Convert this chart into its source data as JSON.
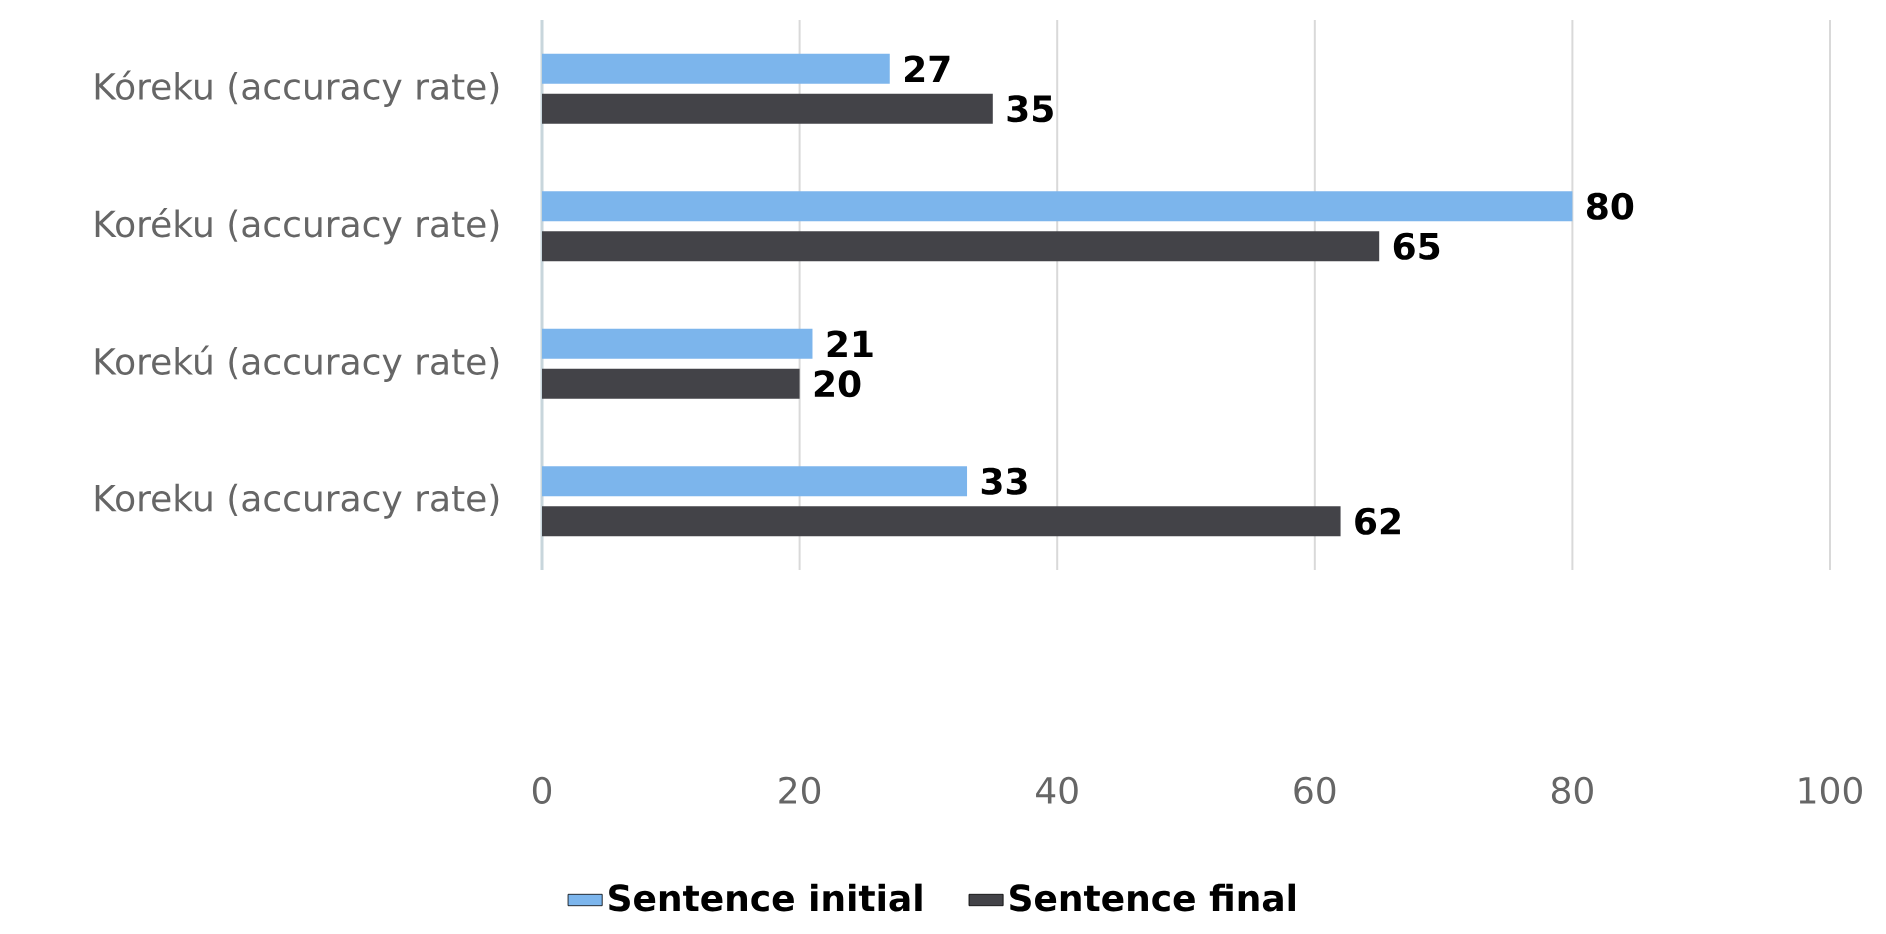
{
  "chart_data": {
    "type": "bar",
    "orientation": "horizontal",
    "categories": [
      "Kóreku (accuracy rate)",
      "Koréku (accuracy rate)",
      "Korekú (accuracy rate)",
      "Koreku (accuracy rate)"
    ],
    "series": [
      {
        "name": "Sentence initial",
        "color": "#7cb5ec",
        "values": [
          27,
          80,
          21,
          33
        ]
      },
      {
        "name": "Sentence final",
        "color": "#434348",
        "values": [
          35,
          65,
          20,
          62
        ]
      }
    ],
    "xlim": [
      0,
      100
    ],
    "xticks": [
      0,
      20,
      40,
      60,
      80,
      100
    ],
    "grid": "x",
    "legend": "bottom",
    "data_labels": true
  }
}
